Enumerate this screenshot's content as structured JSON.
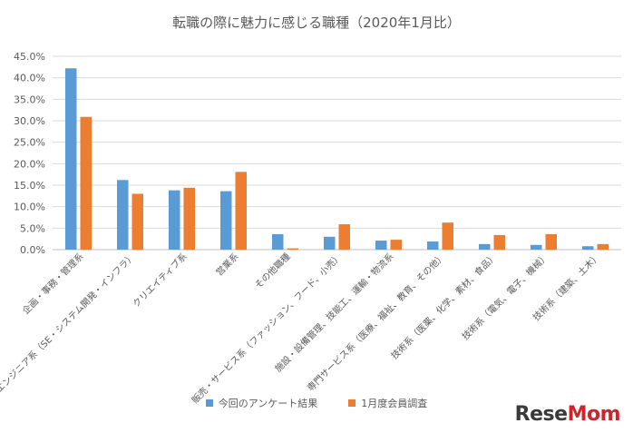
{
  "chart_data": {
    "type": "bar",
    "title": "転職の際に魅力に感じる職種（2020年1月比）",
    "xlabel": "",
    "ylabel": "",
    "ylim": [
      0,
      45
    ],
    "y_ticks": [
      "0.0%",
      "5.0%",
      "10.0%",
      "15.0%",
      "20.0%",
      "25.0%",
      "30.0%",
      "35.0%",
      "40.0%",
      "45.0%"
    ],
    "grid": true,
    "legend_position": "bottom",
    "categories": [
      "企画・事務・管理系",
      "ITエンジニア系（SE・システム開発・インフラ）",
      "クリエイティブ系",
      "営業系",
      "その他職種",
      "販売・サービス系（ファッション、フード、小売）",
      "施設・設備管理、技能工、運輸・物流系",
      "専門サービス系（医療、福祉、教育、その他）",
      "技術系（医薬、化学、素材、食品）",
      "技術系（電気、電子、機械）",
      "技術系（建築、土木）"
    ],
    "series": [
      {
        "name": "今回のアンケート結果",
        "color": "#5b9bd5",
        "values": [
          42.2,
          16.2,
          13.8,
          13.6,
          3.6,
          3.0,
          2.1,
          1.9,
          1.3,
          1.1,
          0.8
        ]
      },
      {
        "name": "1月度会員調査",
        "color": "#ed7d31",
        "values": [
          30.9,
          13.0,
          14.4,
          18.1,
          0.3,
          5.9,
          2.3,
          6.3,
          3.4,
          3.6,
          1.3
        ]
      }
    ]
  },
  "logo": {
    "text_main": "Rese",
    "text_accent": "Mom"
  }
}
